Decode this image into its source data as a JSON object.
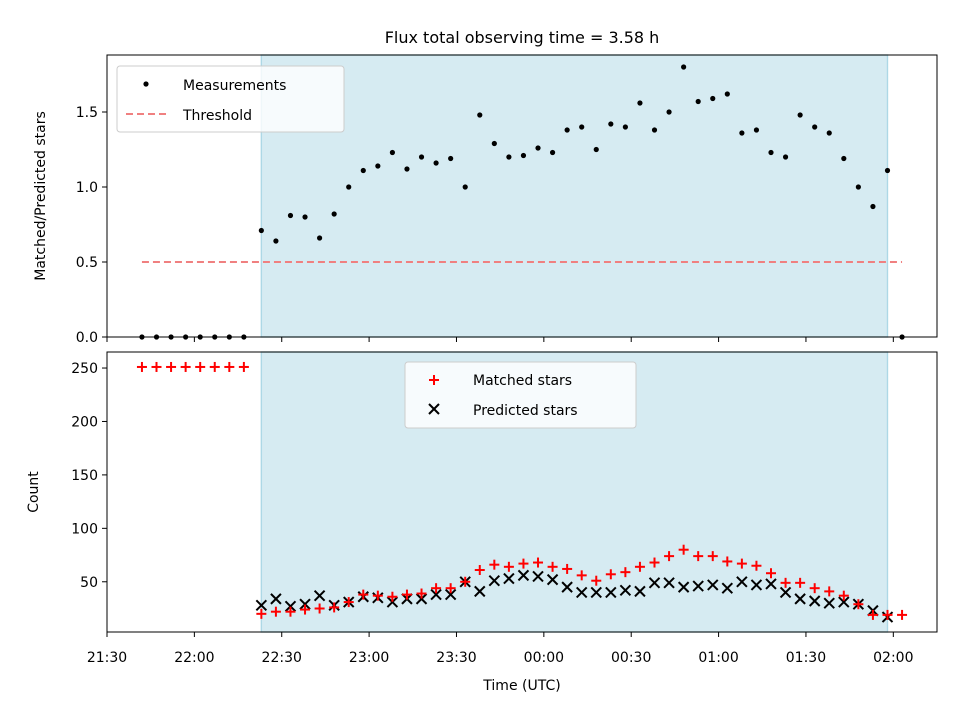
{
  "chart_data": {
    "type": "scatter",
    "title": "Flux total observing time = 3.58 h",
    "xlabel": "Time (UTC)",
    "x_range_minutes": [
      -150,
      135
    ],
    "x_ticks": [
      {
        "t": -150,
        "label": "21:30"
      },
      {
        "t": -120,
        "label": "22:00"
      },
      {
        "t": -90,
        "label": "22:30"
      },
      {
        "t": -60,
        "label": "23:00"
      },
      {
        "t": -30,
        "label": "23:30"
      },
      {
        "t": 0,
        "label": "00:00"
      },
      {
        "t": 30,
        "label": "00:30"
      },
      {
        "t": 60,
        "label": "01:00"
      },
      {
        "t": 90,
        "label": "01:30"
      },
      {
        "t": 120,
        "label": "02:00"
      }
    ],
    "observing_window": {
      "start_minutes": -97,
      "end_minutes": 118,
      "color": "#add8e6"
    },
    "time_minutes": [
      -138,
      -133,
      -128,
      -123,
      -118,
      -113,
      -108,
      -103,
      -97,
      -92,
      -87,
      -82,
      -77,
      -72,
      -67,
      -62,
      -57,
      -52,
      -47,
      -42,
      -37,
      -32,
      -27,
      -22,
      -17,
      -12,
      -7,
      -2,
      3,
      8,
      13,
      18,
      23,
      28,
      33,
      38,
      43,
      48,
      53,
      58,
      63,
      68,
      73,
      78,
      83,
      88,
      93,
      98,
      103,
      108,
      113,
      118,
      123
    ],
    "top_panel": {
      "ylabel": "Matched/Predicted stars",
      "ylim": [
        0,
        1.88
      ],
      "y_ticks": [
        0.0,
        0.5,
        1.0,
        1.5
      ],
      "y_tick_labels": [
        "0.0",
        "0.5",
        "1.0",
        "1.5"
      ],
      "legend_position": "upper-left",
      "measurements_label": "Measurements",
      "threshold_label": "Threshold",
      "threshold_value": 0.5,
      "threshold_color": "#f08080",
      "ratio": [
        0,
        0,
        0,
        0,
        0,
        0,
        0,
        0,
        0.71,
        0.64,
        0.81,
        0.8,
        0.66,
        0.82,
        1.0,
        1.11,
        1.14,
        1.23,
        1.12,
        1.2,
        1.16,
        1.19,
        1.0,
        1.48,
        1.29,
        1.2,
        1.21,
        1.26,
        1.23,
        1.38,
        1.4,
        1.25,
        1.42,
        1.4,
        1.56,
        1.38,
        1.5,
        1.8,
        1.57,
        1.59,
        1.62,
        1.36,
        1.38,
        1.23,
        1.2,
        1.48,
        1.4,
        1.36,
        1.19,
        1.0,
        0.87,
        1.11,
        0
      ]
    },
    "bottom_panel": {
      "ylabel": "Count",
      "ylim": [
        3,
        265
      ],
      "y_ticks": [
        50,
        100,
        150,
        200,
        250
      ],
      "y_tick_labels": [
        "50",
        "100",
        "150",
        "200",
        "250"
      ],
      "legend_position": "upper-center",
      "matched_label": "Matched stars",
      "predicted_label": "Predicted stars",
      "matched_color": "#ff0000",
      "predicted_color": "#000000",
      "matched": [
        251,
        251,
        251,
        251,
        251,
        251,
        251,
        251,
        20,
        22,
        22,
        24,
        25,
        26,
        31,
        38,
        37,
        36,
        38,
        39,
        44,
        44,
        50,
        61,
        66,
        64,
        67,
        68,
        64,
        62,
        56,
        51,
        57,
        59,
        64,
        68,
        74,
        80,
        74,
        74,
        69,
        67,
        65,
        58,
        49,
        49,
        44,
        41,
        37,
        29,
        19,
        19,
        19
      ],
      "predicted": [
        null,
        null,
        null,
        null,
        null,
        null,
        null,
        null,
        28,
        34,
        27,
        29,
        37,
        28,
        31,
        36,
        35,
        31,
        34,
        34,
        38,
        38,
        50,
        41,
        51,
        53,
        56,
        55,
        52,
        45,
        40,
        40,
        40,
        42,
        41,
        49,
        49,
        45,
        46,
        47,
        44,
        50,
        47,
        48,
        40,
        34,
        32,
        30,
        31,
        29,
        23,
        17,
        null
      ]
    }
  }
}
